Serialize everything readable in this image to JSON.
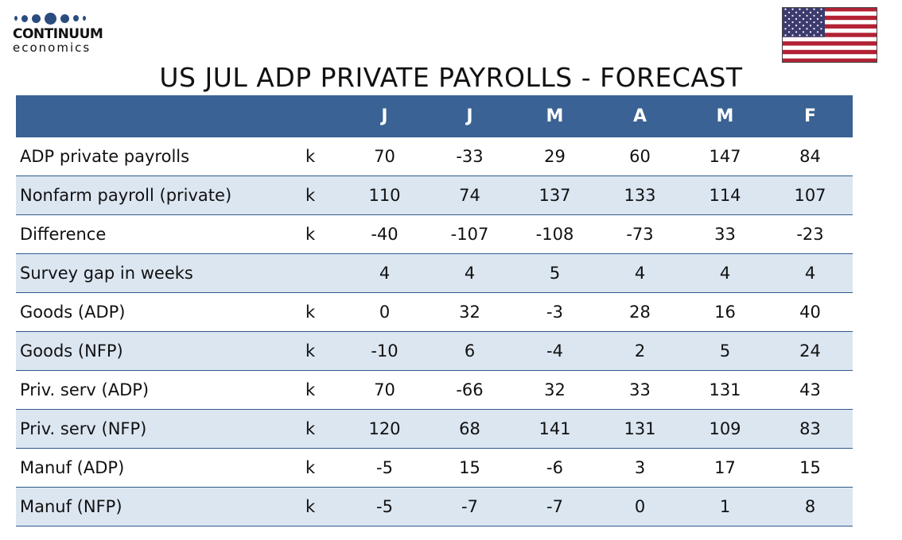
{
  "logo": {
    "name": "CONTINUUM",
    "sub": "economics"
  },
  "title": "US JUL ADP PRIVATE PAYROLLS - FORECAST",
  "chart_data": {
    "type": "table",
    "title": "US JUL ADP PRIVATE PAYROLLS - FORECAST",
    "columns": [
      "J",
      "J",
      "M",
      "A",
      "M",
      "F"
    ],
    "rows": [
      {
        "label": "ADP private payrolls",
        "unit": "k",
        "values": [
          "70",
          "-33",
          "29",
          "60",
          "147",
          "84"
        ]
      },
      {
        "label": "Nonfarm payroll (private)",
        "unit": "k",
        "values": [
          "110",
          "74",
          "137",
          "133",
          "114",
          "107"
        ]
      },
      {
        "label": "Difference",
        "unit": "k",
        "values": [
          "-40",
          "-107",
          "-108",
          "-73",
          "33",
          "-23"
        ]
      },
      {
        "label": "Survey gap in weeks",
        "unit": "",
        "values": [
          "4",
          "4",
          "5",
          "4",
          "4",
          "4"
        ]
      },
      {
        "label": "Goods (ADP)",
        "unit": "k",
        "values": [
          "0",
          "32",
          "-3",
          "28",
          "16",
          "40"
        ]
      },
      {
        "label": "Goods (NFP)",
        "unit": "k",
        "values": [
          "-10",
          "6",
          "-4",
          "2",
          "5",
          "24"
        ]
      },
      {
        "label": "Priv. serv (ADP)",
        "unit": "k",
        "values": [
          "70",
          "-66",
          "32",
          "33",
          "131",
          "43"
        ]
      },
      {
        "label": "Priv. serv (NFP)",
        "unit": "k",
        "values": [
          "120",
          "68",
          "141",
          "131",
          "109",
          "83"
        ]
      },
      {
        "label": "Manuf (ADP)",
        "unit": "k",
        "values": [
          "-5",
          "15",
          "-6",
          "3",
          "17",
          "15"
        ]
      },
      {
        "label": "Manuf (NFP)",
        "unit": "k",
        "values": [
          "-5",
          "-7",
          "-7",
          "0",
          "1",
          "8"
        ]
      }
    ]
  },
  "colors": {
    "header": "#3a6294",
    "alt_row": "#dce6f1",
    "rule": "#2f5a8c",
    "logo": "#2b4c7e"
  }
}
